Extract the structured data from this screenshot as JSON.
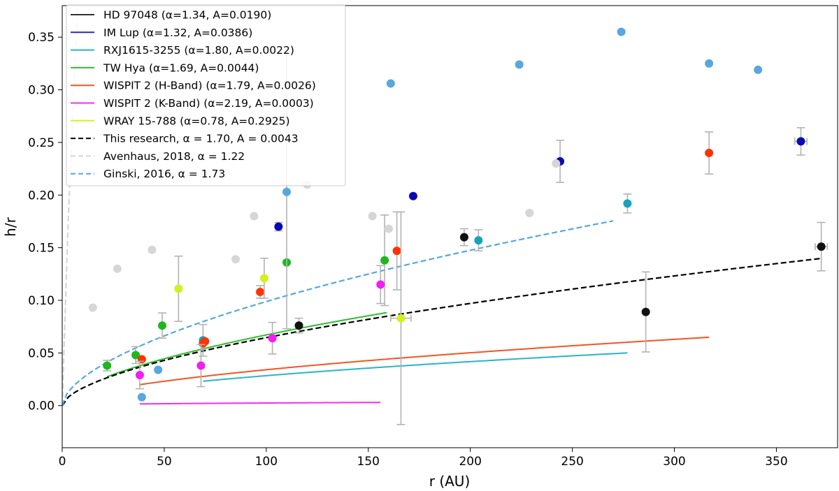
{
  "chart_data": {
    "type": "scatter",
    "xlabel": "r (AU)",
    "ylabel": "h/r",
    "xlim": [
      0,
      380
    ],
    "ylim": [
      -0.04,
      0.38
    ],
    "xticks": [
      "0",
      "50",
      "100",
      "150",
      "200",
      "250",
      "300",
      "350"
    ],
    "yticks": [
      "0.00",
      "0.05",
      "0.10",
      "0.15",
      "0.20",
      "0.25",
      "0.30",
      "0.35"
    ],
    "grid": false,
    "legend_position": "upper-left",
    "colors": {
      "hd": "#333333",
      "imlup": "#2a2ab8",
      "rxj": "#2ab4c8",
      "twhya": "#2dbe2d",
      "wispit_h": "#f25522",
      "wispit_k": "#f22ef2",
      "wray": "#d4f02a",
      "this": "#000000",
      "avenhaus": "#d6d6d6",
      "ginski": "#56a8df",
      "errorbar": "#b3b3b3"
    },
    "legend": [
      "HD 97048 (α=1.34, A=0.0190)",
      "IM Lup (α=1.32, A=0.0386)",
      "RXJ1615-3255 (α=1.80, A=0.0022)",
      "TW Hya (α=1.69, A=0.0044)",
      "WISPIT 2 (H-Band) (α=1.79, A=0.0026)",
      "WISPIT 2 (K-Band) (α=2.19, A=0.0003)",
      "WRAY 15-788 (α=0.78, A=0.2925)",
      "This research, α = 1.70, A = 0.0043",
      "Avenhaus, 2018, α = 1.22",
      "Ginski, 2016, α = 1.73"
    ],
    "fits": [
      {
        "name": "HD 97048 (α=1.34, A=0.0190)",
        "color": "#333333",
        "dash": false,
        "A": 0.019,
        "alpha": 1.34,
        "x": [
          116,
          372
        ]
      },
      {
        "name": "IM Lup (α=1.32, A=0.0386)",
        "color": "#2a2ab8",
        "dash": false,
        "A": 0.0386,
        "alpha": 1.32,
        "x": [
          106,
          362
        ]
      },
      {
        "name": "RXJ1615-3255 (α=1.80, A=0.0022)",
        "color": "#2ab4c8",
        "dash": false,
        "A": 0.0022,
        "alpha": 1.8,
        "x": [
          69,
          277
        ]
      },
      {
        "name": "TW Hya (α=1.69, A=0.0044)",
        "color": "#2dbe2d",
        "dash": false,
        "A": 0.0044,
        "alpha": 1.69,
        "x": [
          22,
          159
        ]
      },
      {
        "name": "WISPIT 2 (H-Band) (α=1.79, A=0.0026)",
        "color": "#f25522",
        "dash": false,
        "A": 0.0026,
        "alpha": 1.79,
        "x": [
          38,
          317
        ]
      },
      {
        "name": "WISPIT 2 (K-Band) (α=2.19, A=0.0003)",
        "color": "#f22ef2",
        "dash": false,
        "A": 0.0003,
        "alpha": 2.19,
        "x": [
          38,
          156
        ]
      },
      {
        "name": "WRAY 15-788 (α=0.78, A=0.2925)",
        "color": "#d4f02a",
        "dash": false,
        "A": 0.2925,
        "alpha": 0.78,
        "x": [
          57,
          166
        ]
      },
      {
        "name": "This research, α = 1.70, A = 0.0043",
        "color": "#000000",
        "dash": true,
        "A": 0.0043,
        "alpha": 1.7,
        "x": [
          0,
          372
        ]
      },
      {
        "name": "Avenhaus, 2018, α = 1.22",
        "color": "#d6d6d6",
        "dash": true,
        "A": 0.0727,
        "alpha": 1.22,
        "x": [
          0,
          333
        ]
      },
      {
        "name": "Ginski, 2016, α = 1.73",
        "color": "#56a8df",
        "dash": true,
        "A": 0.0069,
        "alpha": 1.73,
        "x": [
          0,
          270
        ]
      }
    ],
    "points": [
      {
        "group": "hd",
        "color": "#111111",
        "data": [
          [
            116,
            0.076,
            0.007,
            0
          ],
          [
            197,
            0.16,
            0.008,
            0
          ],
          [
            286,
            0.089,
            0.038,
            0
          ],
          [
            372,
            0.151,
            0.023,
            3
          ]
        ]
      },
      {
        "group": "imlup",
        "color": "#0a0ab4",
        "data": [
          [
            106,
            0.17,
            0.004,
            0
          ],
          [
            172,
            0.199,
            0,
            0
          ],
          [
            244,
            0.232,
            0.02,
            0
          ],
          [
            362,
            0.251,
            0.013,
            3
          ]
        ]
      },
      {
        "group": "rxj",
        "color": "#17a3b8",
        "data": [
          [
            69,
            0.062,
            0.015,
            0
          ],
          [
            204,
            0.157,
            0.01,
            0
          ],
          [
            277,
            0.192,
            0.009,
            0
          ]
        ]
      },
      {
        "group": "twhya",
        "color": "#1eb81e",
        "data": [
          [
            22,
            0.038,
            0.005,
            0
          ],
          [
            36,
            0.048,
            0.008,
            0
          ],
          [
            49,
            0.076,
            0.012,
            0
          ],
          [
            110,
            0.136,
            0,
            0
          ],
          [
            158,
            0.138,
            0.043,
            0
          ]
        ]
      },
      {
        "group": "wispit_h",
        "color": "#ff3300",
        "data": [
          [
            39,
            0.044,
            0,
            0
          ],
          [
            69,
            0.059,
            0,
            0
          ],
          [
            70,
            0.061,
            0,
            0
          ],
          [
            97,
            0.108,
            0.006,
            0
          ],
          [
            164,
            0.147,
            0.037,
            0
          ],
          [
            317,
            0.24,
            0.02,
            0
          ]
        ]
      },
      {
        "group": "wispit_k",
        "color": "#f21ef2",
        "data": [
          [
            38,
            0.029,
            0.013,
            0
          ],
          [
            68,
            0.038,
            0.02,
            0
          ],
          [
            103,
            0.064,
            0.015,
            0
          ],
          [
            156,
            0.115,
            0.018,
            0
          ]
        ]
      },
      {
        "group": "wray",
        "color": "#d4f01e",
        "data": [
          [
            57,
            0.111,
            0.031,
            0
          ],
          [
            99,
            0.121,
            0.019,
            0
          ],
          [
            166,
            0.083,
            0.101,
            5
          ]
        ]
      },
      {
        "group": "avenhaus",
        "color": "#d6d6d6",
        "data": [
          [
            15,
            0.093,
            0,
            0
          ],
          [
            27,
            0.13,
            0,
            0
          ],
          [
            44,
            0.148,
            0,
            0
          ],
          [
            85,
            0.139,
            0,
            0
          ],
          [
            94,
            0.18,
            0,
            0
          ],
          [
            120,
            0.21,
            0,
            0
          ],
          [
            152,
            0.18,
            0,
            0
          ],
          [
            160,
            0.168,
            0,
            0
          ],
          [
            229,
            0.183,
            0,
            0
          ],
          [
            242,
            0.23,
            0,
            0
          ]
        ]
      },
      {
        "group": "ginski",
        "color": "#56a8df",
        "data": [
          [
            39,
            0.008,
            0,
            0
          ],
          [
            47,
            0.034,
            0,
            0
          ],
          [
            110,
            0.203,
            0.13,
            0
          ],
          [
            161,
            0.306,
            0,
            0
          ],
          [
            224,
            0.324,
            0,
            0
          ],
          [
            274,
            0.355,
            0,
            0
          ],
          [
            317,
            0.325,
            0,
            0
          ],
          [
            341,
            0.319,
            0,
            0
          ]
        ]
      }
    ]
  }
}
